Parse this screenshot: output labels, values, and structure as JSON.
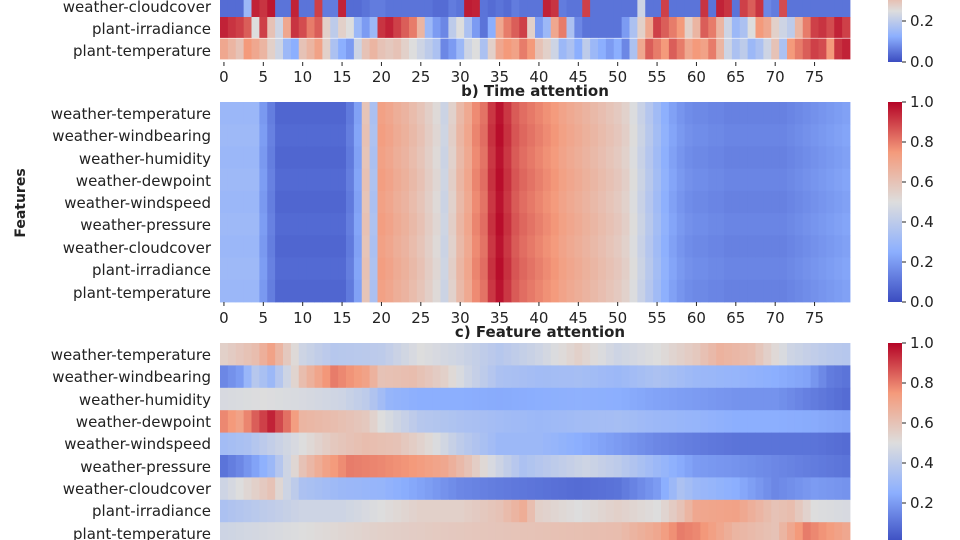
{
  "chart_data": [
    {
      "type": "heatmap",
      "panel_id": "a",
      "title": "",
      "xlabel": "",
      "ylabel": "",
      "features": [
        "weather-cloudcover",
        "plant-irradiance",
        "plant-temperature"
      ],
      "x_ticks": [
        0,
        5,
        10,
        15,
        20,
        25,
        30,
        35,
        40,
        45,
        50,
        55,
        60,
        65,
        70,
        75
      ],
      "colorbar_ticks": [
        "0.2",
        "0.0"
      ],
      "clim": [
        0,
        1
      ],
      "colormap": "coolwarm",
      "values": [
        [
          0.08,
          0.08,
          0.08,
          0.3,
          0.95,
          0.92,
          0.97,
          0.1,
          0.1,
          0.95,
          0.1,
          0.1,
          0.9,
          0.12,
          0.12,
          0.95,
          0.08,
          0.08,
          0.1,
          0.12,
          0.12,
          0.1,
          0.1,
          0.1,
          0.1,
          0.1,
          0.1,
          0.08,
          0.08,
          0.12,
          0.1,
          0.96,
          0.95,
          0.1,
          0.08,
          0.1,
          0.08,
          0.12,
          0.1,
          0.1,
          0.1,
          0.95,
          0.92,
          0.12,
          0.1,
          0.1,
          0.9,
          0.1,
          0.1,
          0.1,
          0.1,
          0.1,
          0.1,
          0.45,
          0.1,
          0.1,
          0.9,
          0.1,
          0.1,
          0.1,
          0.1,
          0.92,
          0.1,
          0.95,
          0.92,
          0.1,
          0.9,
          0.85,
          0.92,
          0.15,
          0.12,
          0.88,
          0.1,
          0.1,
          0.1,
          0.1,
          0.1,
          0.1,
          0.1,
          0.1
        ],
        [
          0.95,
          0.92,
          0.9,
          0.85,
          0.5,
          0.9,
          0.6,
          0.45,
          0.7,
          0.92,
          0.88,
          0.8,
          0.85,
          0.55,
          0.4,
          0.55,
          0.5,
          0.3,
          0.2,
          0.3,
          0.92,
          0.95,
          0.9,
          0.85,
          0.8,
          0.65,
          0.3,
          0.2,
          0.15,
          0.4,
          0.5,
          0.35,
          0.2,
          0.1,
          0.25,
          0.7,
          0.8,
          0.85,
          0.9,
          0.55,
          0.2,
          0.3,
          0.7,
          0.8,
          0.35,
          0.15,
          0.1,
          0.1,
          0.1,
          0.1,
          0.1,
          0.2,
          0.35,
          0.55,
          0.7,
          0.9,
          0.85,
          0.8,
          0.75,
          0.55,
          0.65,
          0.85,
          0.8,
          0.65,
          0.45,
          0.3,
          0.35,
          0.5,
          0.75,
          0.7,
          0.55,
          0.45,
          0.4,
          0.65,
          0.8,
          0.9,
          0.92,
          0.88,
          0.95,
          0.9
        ],
        [
          0.7,
          0.65,
          0.6,
          0.75,
          0.7,
          0.65,
          0.55,
          0.45,
          0.3,
          0.25,
          0.6,
          0.65,
          0.72,
          0.55,
          0.35,
          0.25,
          0.2,
          0.45,
          0.6,
          0.65,
          0.6,
          0.58,
          0.6,
          0.55,
          0.5,
          0.45,
          0.4,
          0.35,
          0.15,
          0.2,
          0.3,
          0.45,
          0.5,
          0.35,
          0.55,
          0.7,
          0.75,
          0.72,
          0.8,
          0.75,
          0.6,
          0.55,
          0.45,
          0.3,
          0.35,
          0.25,
          0.4,
          0.3,
          0.25,
          0.2,
          0.25,
          0.15,
          0.35,
          0.7,
          0.85,
          0.8,
          0.75,
          0.85,
          0.8,
          0.7,
          0.75,
          0.72,
          0.8,
          0.65,
          0.45,
          0.35,
          0.4,
          0.3,
          0.35,
          0.45,
          0.6,
          0.35,
          0.75,
          0.8,
          0.85,
          0.9,
          0.88,
          0.75,
          0.92,
          0.95
        ]
      ]
    },
    {
      "type": "heatmap",
      "panel_id": "b",
      "title": "b) Time attention",
      "xlabel": "",
      "ylabel": "Features",
      "features": [
        "weather-temperature",
        "weather-windbearing",
        "weather-humidity",
        "weather-dewpoint",
        "weather-windspeed",
        "weather-pressure",
        "weather-cloudcover",
        "plant-irradiance",
        "plant-temperature"
      ],
      "x_ticks": [
        0,
        5,
        10,
        15,
        20,
        25,
        30,
        35,
        40,
        45,
        50,
        55,
        60,
        65,
        70,
        75
      ],
      "colorbar_ticks": [
        "1.0",
        "0.8",
        "0.6",
        "0.4",
        "0.2",
        "0.0"
      ],
      "clim": [
        0,
        1
      ],
      "colormap": "coolwarm",
      "time_profile": [
        0.3,
        0.3,
        0.3,
        0.3,
        0.3,
        0.2,
        0.13,
        0.07,
        0.07,
        0.07,
        0.07,
        0.07,
        0.07,
        0.07,
        0.07,
        0.07,
        0.12,
        0.22,
        0.6,
        0.35,
        0.73,
        0.71,
        0.68,
        0.66,
        0.63,
        0.6,
        0.56,
        0.52,
        0.45,
        0.55,
        0.64,
        0.7,
        0.78,
        0.82,
        0.92,
        0.98,
        0.92,
        0.86,
        0.83,
        0.81,
        0.79,
        0.77,
        0.75,
        0.72,
        0.7,
        0.68,
        0.66,
        0.64,
        0.62,
        0.6,
        0.58,
        0.55,
        0.5,
        0.44,
        0.38,
        0.32,
        0.26,
        0.22,
        0.19,
        0.17,
        0.16,
        0.16,
        0.15,
        0.15,
        0.14,
        0.14,
        0.14,
        0.14,
        0.14,
        0.14,
        0.14,
        0.14,
        0.15,
        0.16,
        0.17,
        0.18,
        0.19,
        0.2,
        0.21,
        0.22
      ]
    },
    {
      "type": "heatmap",
      "panel_id": "c",
      "title": "c) Feature attention",
      "xlabel": "",
      "ylabel": "",
      "features": [
        "weather-temperature",
        "weather-windbearing",
        "weather-humidity",
        "weather-dewpoint",
        "weather-windspeed",
        "weather-pressure",
        "weather-cloudcover",
        "plant-irradiance",
        "plant-temperature"
      ],
      "colorbar_ticks": [
        "1.0",
        "0.8",
        "0.6",
        "0.4",
        "0.2"
      ],
      "clim": [
        0,
        1
      ],
      "colormap": "coolwarm",
      "row_profiles": [
        [
          [
            0,
            0.55
          ],
          [
            4,
            0.62
          ],
          [
            6,
            0.72
          ],
          [
            8,
            0.58
          ],
          [
            10,
            0.45
          ],
          [
            14,
            0.38
          ],
          [
            20,
            0.4
          ],
          [
            25,
            0.5
          ],
          [
            30,
            0.45
          ],
          [
            35,
            0.38
          ],
          [
            40,
            0.45
          ],
          [
            45,
            0.55
          ],
          [
            50,
            0.45
          ],
          [
            55,
            0.5
          ],
          [
            60,
            0.58
          ],
          [
            63,
            0.66
          ],
          [
            67,
            0.62
          ],
          [
            72,
            0.45
          ],
          [
            76,
            0.4
          ],
          [
            79,
            0.38
          ]
        ],
        [
          [
            0,
            0.15
          ],
          [
            2,
            0.2
          ],
          [
            4,
            0.38
          ],
          [
            6,
            0.3
          ],
          [
            8,
            0.45
          ],
          [
            10,
            0.62
          ],
          [
            14,
            0.8
          ],
          [
            18,
            0.72
          ],
          [
            20,
            0.6
          ],
          [
            24,
            0.62
          ],
          [
            28,
            0.55
          ],
          [
            31,
            0.45
          ],
          [
            35,
            0.35
          ],
          [
            40,
            0.32
          ],
          [
            45,
            0.33
          ],
          [
            50,
            0.3
          ],
          [
            55,
            0.35
          ],
          [
            60,
            0.3
          ],
          [
            65,
            0.28
          ],
          [
            70,
            0.25
          ],
          [
            74,
            0.22
          ],
          [
            77,
            0.12
          ],
          [
            79,
            0.1
          ]
        ],
        [
          [
            0,
            0.48
          ],
          [
            5,
            0.5
          ],
          [
            10,
            0.48
          ],
          [
            15,
            0.45
          ],
          [
            18,
            0.4
          ],
          [
            21,
            0.28
          ],
          [
            25,
            0.25
          ],
          [
            30,
            0.25
          ],
          [
            35,
            0.24
          ],
          [
            40,
            0.25
          ],
          [
            45,
            0.26
          ],
          [
            50,
            0.25
          ],
          [
            55,
            0.22
          ],
          [
            60,
            0.2
          ],
          [
            65,
            0.18
          ],
          [
            70,
            0.18
          ],
          [
            75,
            0.12
          ],
          [
            79,
            0.08
          ]
        ],
        [
          [
            0,
            0.78
          ],
          [
            2,
            0.72
          ],
          [
            4,
            0.85
          ],
          [
            6,
            0.95
          ],
          [
            8,
            0.82
          ],
          [
            10,
            0.65
          ],
          [
            14,
            0.62
          ],
          [
            18,
            0.58
          ],
          [
            20,
            0.5
          ],
          [
            25,
            0.38
          ],
          [
            30,
            0.35
          ],
          [
            35,
            0.32
          ],
          [
            40,
            0.3
          ],
          [
            45,
            0.32
          ],
          [
            50,
            0.33
          ],
          [
            55,
            0.3
          ],
          [
            60,
            0.28
          ],
          [
            65,
            0.25
          ],
          [
            70,
            0.25
          ],
          [
            75,
            0.24
          ],
          [
            79,
            0.22
          ]
        ],
        [
          [
            0,
            0.32
          ],
          [
            3,
            0.35
          ],
          [
            6,
            0.42
          ],
          [
            10,
            0.5
          ],
          [
            14,
            0.58
          ],
          [
            18,
            0.62
          ],
          [
            22,
            0.6
          ],
          [
            26,
            0.52
          ],
          [
            30,
            0.4
          ],
          [
            35,
            0.3
          ],
          [
            40,
            0.3
          ],
          [
            45,
            0.25
          ],
          [
            50,
            0.2
          ],
          [
            55,
            0.15
          ],
          [
            60,
            0.12
          ],
          [
            65,
            0.1
          ],
          [
            70,
            0.1
          ],
          [
            75,
            0.1
          ],
          [
            79,
            0.08
          ]
        ],
        [
          [
            0,
            0.1
          ],
          [
            2,
            0.15
          ],
          [
            4,
            0.22
          ],
          [
            6,
            0.3
          ],
          [
            8,
            0.45
          ],
          [
            10,
            0.6
          ],
          [
            13,
            0.72
          ],
          [
            16,
            0.8
          ],
          [
            20,
            0.78
          ],
          [
            24,
            0.75
          ],
          [
            28,
            0.7
          ],
          [
            31,
            0.6
          ],
          [
            34,
            0.48
          ],
          [
            38,
            0.35
          ],
          [
            42,
            0.4
          ],
          [
            46,
            0.45
          ],
          [
            50,
            0.4
          ],
          [
            55,
            0.3
          ],
          [
            60,
            0.2
          ],
          [
            65,
            0.18
          ],
          [
            70,
            0.15
          ],
          [
            75,
            0.12
          ],
          [
            79,
            0.1
          ]
        ],
        [
          [
            0,
            0.45
          ],
          [
            4,
            0.55
          ],
          [
            6,
            0.6
          ],
          [
            8,
            0.45
          ],
          [
            10,
            0.35
          ],
          [
            15,
            0.3
          ],
          [
            20,
            0.28
          ],
          [
            25,
            0.22
          ],
          [
            30,
            0.15
          ],
          [
            35,
            0.12
          ],
          [
            40,
            0.1
          ],
          [
            45,
            0.08
          ],
          [
            50,
            0.1
          ],
          [
            55,
            0.2
          ],
          [
            58,
            0.35
          ],
          [
            60,
            0.3
          ],
          [
            65,
            0.25
          ],
          [
            70,
            0.15
          ],
          [
            75,
            0.2
          ],
          [
            79,
            0.18
          ]
        ],
        [
          [
            0,
            0.35
          ],
          [
            5,
            0.4
          ],
          [
            10,
            0.45
          ],
          [
            15,
            0.45
          ],
          [
            20,
            0.5
          ],
          [
            25,
            0.55
          ],
          [
            30,
            0.55
          ],
          [
            35,
            0.6
          ],
          [
            38,
            0.68
          ],
          [
            40,
            0.55
          ],
          [
            45,
            0.5
          ],
          [
            50,
            0.55
          ],
          [
            55,
            0.5
          ],
          [
            58,
            0.6
          ],
          [
            60,
            0.7
          ],
          [
            65,
            0.72
          ],
          [
            70,
            0.6
          ],
          [
            72,
            0.62
          ],
          [
            75,
            0.5
          ],
          [
            79,
            0.48
          ]
        ],
        [
          [
            0,
            0.45
          ],
          [
            10,
            0.5
          ],
          [
            20,
            0.55
          ],
          [
            30,
            0.58
          ],
          [
            40,
            0.6
          ],
          [
            50,
            0.62
          ],
          [
            55,
            0.7
          ],
          [
            58,
            0.8
          ],
          [
            60,
            0.78
          ],
          [
            65,
            0.65
          ],
          [
            70,
            0.6
          ],
          [
            74,
            0.8
          ],
          [
            78,
            0.72
          ],
          [
            79,
            0.7
          ]
        ]
      ]
    }
  ]
}
